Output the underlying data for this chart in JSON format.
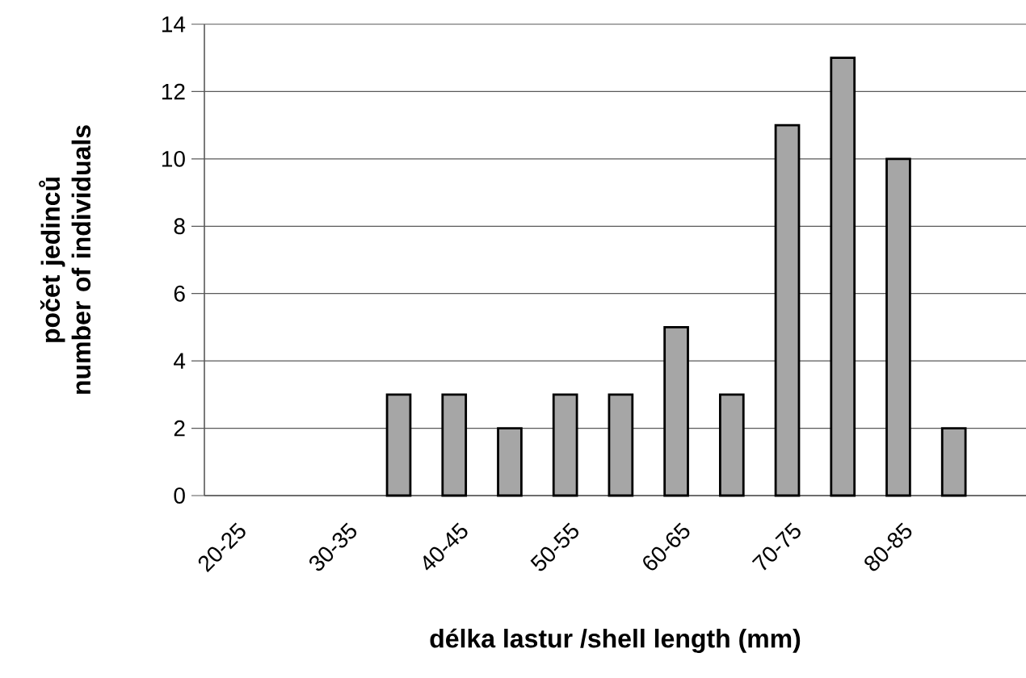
{
  "chart_data": {
    "type": "bar",
    "xlabel": "délka lastur /shell length (mm)",
    "ylabel": "počet jedinců\nnumber of individuals",
    "categories": [
      "20-25",
      null,
      "30-35",
      null,
      "40-45",
      null,
      "50-55",
      null,
      "60-65",
      null,
      "70-75",
      null,
      "80-85",
      null
    ],
    "values": [
      0,
      0,
      0,
      3,
      3,
      2,
      3,
      3,
      5,
      3,
      11,
      13,
      10,
      2
    ],
    "color": "#a6a6a6",
    "ylim": [
      0,
      14
    ],
    "yticks": [
      0,
      2,
      4,
      6,
      8,
      10,
      12,
      14
    ],
    "grid": "y"
  }
}
